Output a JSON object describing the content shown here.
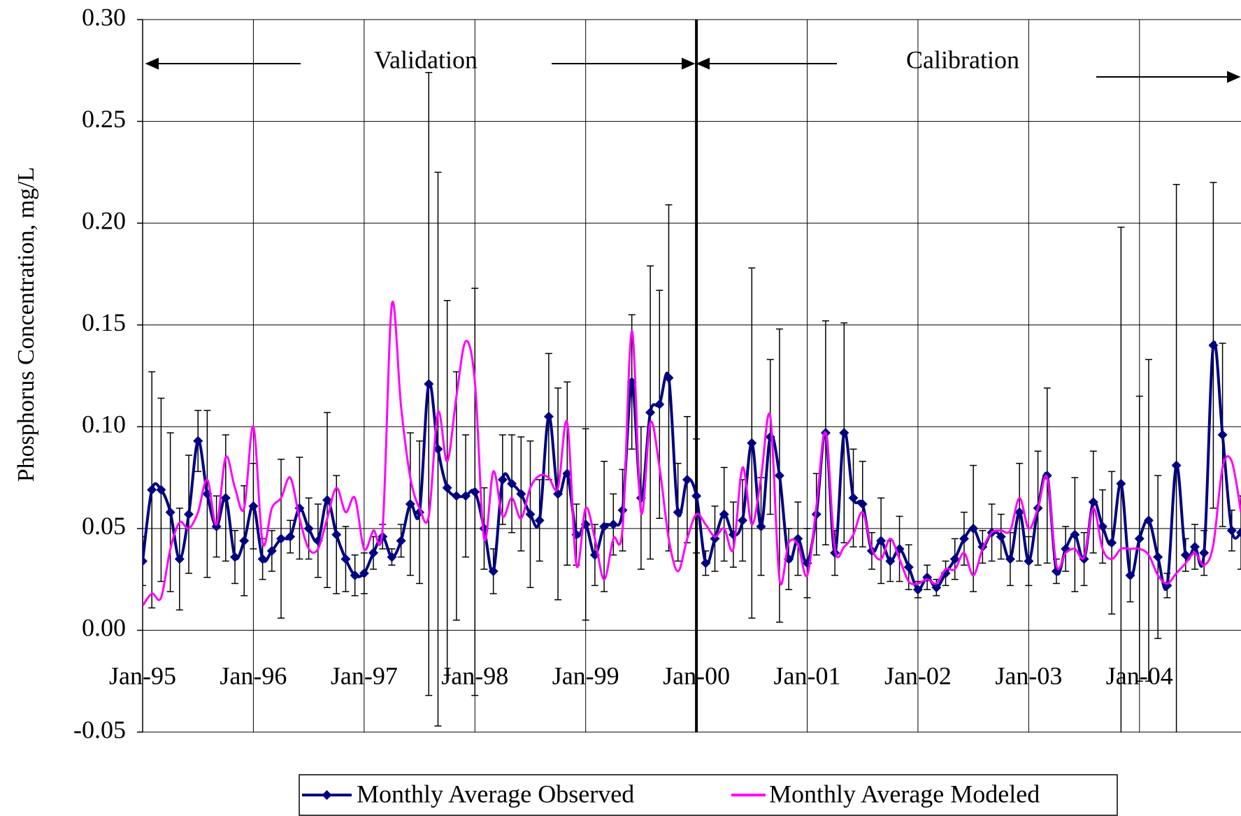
{
  "chart_data": {
    "type": "line",
    "y_label": "Phosphorus Concentration, mg/L",
    "annotations": [
      "Validation",
      "Calibration"
    ],
    "ylim": [
      -0.05,
      0.3
    ],
    "yticks": [
      {
        "value": 0.3,
        "label": "0.30"
      },
      {
        "value": 0.25,
        "label": "0.25"
      },
      {
        "value": 0.2,
        "label": "0.20"
      },
      {
        "value": 0.15,
        "label": "0.15"
      },
      {
        "value": 0.1,
        "label": "0.10"
      },
      {
        "value": 0.05,
        "label": "0.05"
      },
      {
        "value": 0.0,
        "label": "0.00"
      },
      {
        "value": -0.05,
        "label": "-0.05"
      }
    ],
    "grid": true,
    "categories": [
      "Jan-95",
      null,
      null,
      null,
      null,
      null,
      null,
      null,
      null,
      null,
      null,
      null,
      "Jan-96",
      null,
      null,
      null,
      null,
      null,
      null,
      null,
      null,
      null,
      null,
      null,
      "Jan-97",
      null,
      null,
      null,
      null,
      null,
      null,
      null,
      null,
      null,
      null,
      null,
      "Jan-98",
      null,
      null,
      null,
      null,
      null,
      null,
      null,
      null,
      null,
      null,
      null,
      "Jan-99",
      null,
      null,
      null,
      null,
      null,
      null,
      null,
      null,
      null,
      null,
      null,
      "Jan-00",
      null,
      null,
      null,
      null,
      null,
      null,
      null,
      null,
      null,
      null,
      null,
      "Jan-01",
      null,
      null,
      null,
      null,
      null,
      null,
      null,
      null,
      null,
      null,
      null,
      "Jan-02",
      null,
      null,
      null,
      null,
      null,
      null,
      null,
      null,
      null,
      null,
      null,
      "Jan-03",
      null,
      null,
      null,
      null,
      null,
      null,
      null,
      null,
      null,
      null,
      null,
      "Jan-04",
      null,
      null,
      null,
      null,
      null,
      null,
      null,
      null,
      null,
      null,
      null
    ],
    "series": [
      {
        "name": "Monthly Average Observed",
        "color": "#000080",
        "marker": "diamond",
        "values": [
          0.034,
          0.069,
          0.069,
          0.058,
          0.035,
          0.057,
          0.093,
          0.067,
          0.051,
          0.065,
          0.036,
          0.044,
          0.061,
          0.035,
          0.039,
          0.045,
          0.046,
          0.06,
          0.05,
          0.044,
          0.064,
          0.047,
          0.035,
          0.027,
          0.028,
          0.038,
          0.046,
          0.036,
          0.044,
          0.062,
          0.058,
          0.121,
          0.089,
          0.07,
          0.066,
          0.066,
          0.068,
          0.05,
          0.029,
          0.074,
          0.072,
          0.067,
          0.057,
          0.054,
          0.105,
          0.067,
          0.077,
          0.047,
          0.052,
          0.037,
          0.051,
          0.052,
          0.059,
          0.122,
          0.065,
          0.107,
          0.111,
          0.124,
          0.058,
          0.074,
          0.066,
          0.033,
          0.045,
          0.057,
          0.047,
          0.054,
          0.092,
          0.051,
          0.095,
          0.076,
          0.035,
          0.045,
          0.033,
          0.057,
          0.097,
          0.038,
          0.097,
          0.065,
          0.062,
          0.039,
          0.044,
          0.034,
          0.04,
          0.031,
          0.02,
          0.026,
          0.021,
          0.028,
          0.035,
          0.045,
          0.05,
          0.041,
          0.048,
          0.046,
          0.035,
          0.058,
          0.034,
          0.06,
          0.076,
          0.029,
          0.04,
          0.047,
          0.035,
          0.063,
          0.051,
          0.043,
          0.072,
          0.027,
          0.045,
          0.054,
          0.036,
          0.022,
          0.081,
          0.037,
          0.041,
          0.038,
          0.14,
          0.096,
          0.049,
          0.048
        ],
        "errors": [
          0.012,
          0.058,
          0.045,
          0.039,
          0.025,
          0.029,
          0.015,
          0.041,
          0.015,
          0.031,
          0.013,
          0.027,
          0.021,
          0.01,
          0.01,
          0.039,
          0.008,
          0.025,
          0.015,
          0.018,
          0.043,
          0.029,
          0.016,
          0.01,
          0.01,
          0.008,
          0.006,
          0.004,
          0.008,
          0.035,
          0.035,
          0.153,
          0.136,
          0.092,
          0.061,
          0.03,
          0.1,
          0.02,
          0.011,
          0.022,
          0.024,
          0.028,
          0.036,
          0.02,
          0.031,
          0.052,
          0.045,
          0.015,
          0.047,
          0.015,
          0.032,
          0.015,
          0.02,
          0.033,
          0.035,
          0.072,
          0.056,
          0.085,
          0.024,
          0.031,
          0.028,
          0.006,
          0.016,
          0.023,
          0.016,
          0.02,
          0.086,
          0.024,
          0.038,
          0.072,
          0.015,
          0.018,
          0.017,
          0.02,
          0.055,
          0.011,
          0.054,
          0.024,
          0.021,
          0.009,
          0.021,
          0.01,
          0.016,
          0.011,
          0.004,
          0.006,
          0.004,
          0.006,
          0.01,
          0.013,
          0.031,
          0.008,
          0.014,
          0.011,
          0.013,
          0.024,
          0.012,
          0.028,
          0.043,
          0.006,
          0.011,
          0.028,
          0.013,
          0.025,
          0.018,
          0.035,
          0.126,
          0.013,
          0.07,
          0.079,
          0.04,
          0.006,
          0.138,
          0.008,
          0.011,
          0.011,
          0.08,
          0.045,
          0.01,
          0.018
        ]
      },
      {
        "name": "Monthly Average Modeled",
        "color": "#ff00ff",
        "values": [
          0.012,
          0.018,
          0.016,
          0.04,
          0.053,
          0.05,
          0.058,
          0.074,
          0.052,
          0.085,
          0.07,
          0.06,
          0.1,
          0.043,
          0.06,
          0.065,
          0.075,
          0.055,
          0.04,
          0.04,
          0.055,
          0.07,
          0.058,
          0.065,
          0.04,
          0.049,
          0.05,
          0.16,
          0.11,
          0.075,
          0.06,
          0.056,
          0.107,
          0.083,
          0.115,
          0.142,
          0.122,
          0.045,
          0.078,
          0.056,
          0.065,
          0.055,
          0.07,
          0.076,
          0.075,
          0.07,
          0.102,
          0.032,
          0.06,
          0.045,
          0.025,
          0.045,
          0.05,
          0.147,
          0.058,
          0.102,
          0.08,
          0.045,
          0.029,
          0.045,
          0.057,
          0.052,
          0.046,
          0.05,
          0.04,
          0.08,
          0.052,
          0.075,
          0.105,
          0.025,
          0.043,
          0.042,
          0.027,
          0.061,
          0.097,
          0.04,
          0.041,
          0.047,
          0.058,
          0.04,
          0.035,
          0.045,
          0.035,
          0.024,
          0.023,
          0.025,
          0.023,
          0.03,
          0.03,
          0.038,
          0.027,
          0.04,
          0.048,
          0.049,
          0.049,
          0.065,
          0.05,
          0.06,
          0.075,
          0.032,
          0.038,
          0.04,
          0.036,
          0.06,
          0.04,
          0.035,
          0.04,
          0.04,
          0.04,
          0.037,
          0.027,
          0.023,
          0.028,
          0.033,
          0.038,
          0.032,
          0.042,
          0.08,
          0.083,
          0.058
        ]
      }
    ]
  }
}
